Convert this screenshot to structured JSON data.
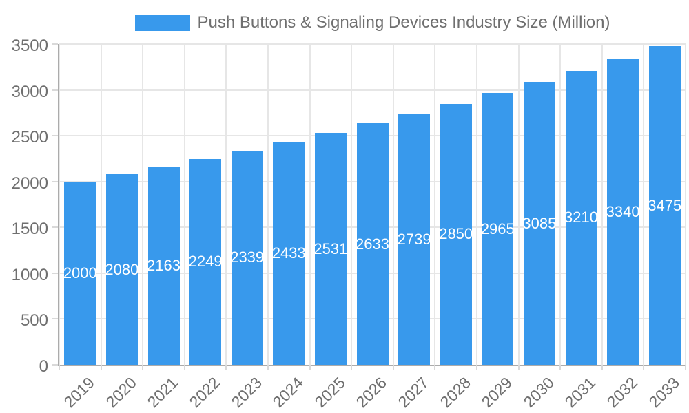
{
  "colors": {
    "bar": "#3899ec",
    "grid": "#e6e6e6",
    "axis_line": "#ababab",
    "tick_mark": "#d9d9d9",
    "axis_text": "#6f6f6f",
    "value_label": "#ffffff",
    "background": "#ffffff"
  },
  "legend": {
    "position": "top",
    "swatch_color": "#3899ec",
    "label": "Push Buttons & Signaling Devices Industry Size (Million)"
  },
  "chart_data": {
    "type": "bar",
    "title": "Push Buttons & Signaling Devices Industry Size (Million)",
    "xlabel": "",
    "ylabel": "",
    "categories": [
      "2019",
      "2020",
      "2021",
      "2022",
      "2023",
      "2024",
      "2025",
      "2026",
      "2027",
      "2028",
      "2029",
      "2030",
      "2031",
      "2032",
      "2033"
    ],
    "series": [
      {
        "name": "Push Buttons & Signaling Devices Industry Size (Million)",
        "values": [
          2000,
          2080,
          2163,
          2249,
          2339,
          2433,
          2531,
          2633,
          2739,
          2850,
          2965,
          3085,
          3210,
          3340,
          3475
        ]
      }
    ],
    "value_labels_shown": true,
    "ylim": [
      0,
      3500
    ],
    "yticks": [
      0,
      500,
      1000,
      1500,
      2000,
      2500,
      3000,
      3500
    ],
    "grid": true,
    "x_label_rotation_deg": -45,
    "legend_position": "top"
  }
}
